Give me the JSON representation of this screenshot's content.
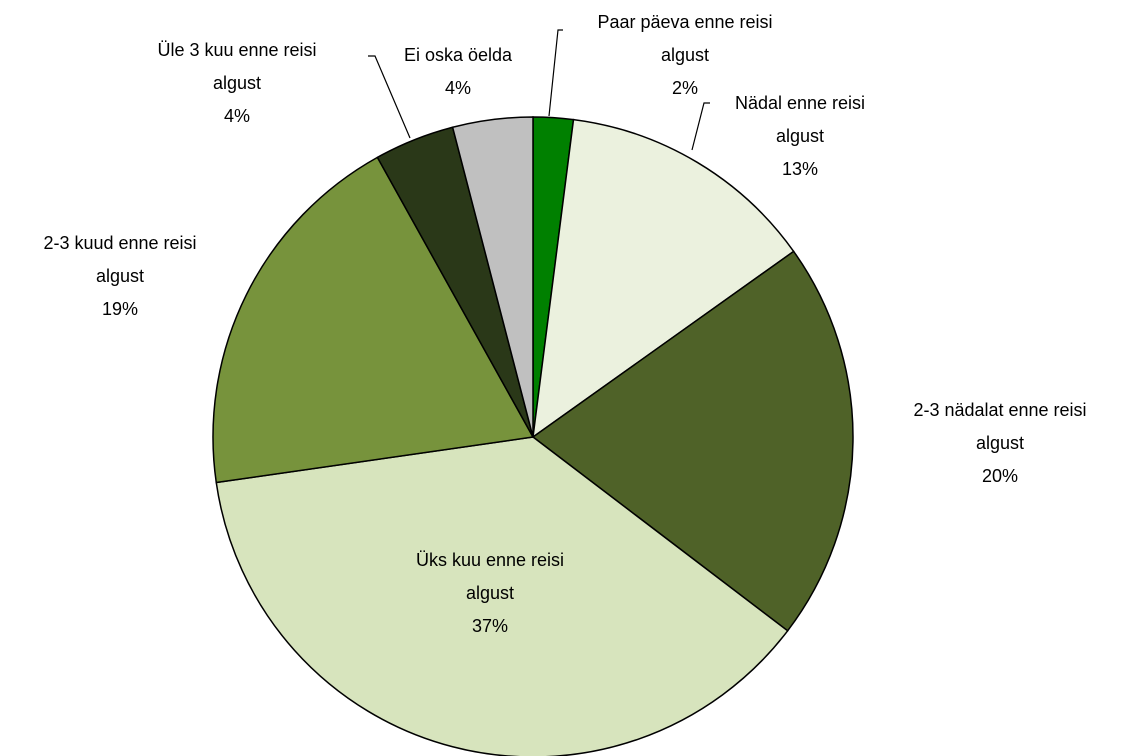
{
  "chart_data": {
    "type": "pie",
    "categories": [
      "Paar päeva enne reisi algust",
      "Nädal enne reisi algust",
      "2-3 nädalat enne reisi algust",
      "Üks kuu enne reisi algust",
      "2-3 kuud enne reisi algust",
      "Üle 3 kuu enne reisi algust",
      "Ei oska öelda"
    ],
    "values": [
      2,
      13,
      20,
      37,
      19,
      4,
      4
    ],
    "value_labels": [
      "2%",
      "13%",
      "20%",
      "37%",
      "19%",
      "4%",
      "4%"
    ],
    "colors": [
      "#008000",
      "#ebf1de",
      "#4f6228",
      "#d7e4bd",
      "#77933c",
      "#2a3818",
      "#c0c0c0"
    ]
  }
}
